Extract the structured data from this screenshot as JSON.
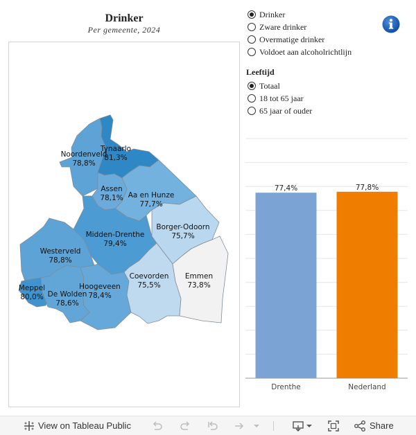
{
  "header": {
    "title": "Drinker",
    "subtitle": "Per gemeente, 2024"
  },
  "filters": {
    "indicator": [
      {
        "label": "Drinker",
        "selected": true
      },
      {
        "label": "Zware drinker",
        "selected": false
      },
      {
        "label": "Overmatige drinker",
        "selected": false
      },
      {
        "label": "Voldoet aan alcoholrichtlijn",
        "selected": false
      }
    ],
    "leeftijd_label": "Leeftijd",
    "leeftijd": [
      {
        "label": "Totaal",
        "selected": true
      },
      {
        "label": "18 tot 65 jaar",
        "selected": false
      },
      {
        "label": "65 jaar of ouder",
        "selected": false
      }
    ]
  },
  "map": {
    "municipalities": [
      {
        "name": "Tynaarlo",
        "value": "81,3%",
        "color": "#2e88c6"
      },
      {
        "name": "Noordenveld",
        "value": "78,8%",
        "color": "#5da3d6"
      },
      {
        "name": "Assen",
        "value": "78,1%",
        "color": "#6aabdb"
      },
      {
        "name": "Aa en Hunze",
        "value": "77,7%",
        "color": "#73b1de"
      },
      {
        "name": "Midden-Drenthe",
        "value": "79,4%",
        "color": "#4d9bd3"
      },
      {
        "name": "Borger-Odoorn",
        "value": "75,7%",
        "color": "#b9d7ee"
      },
      {
        "name": "Westerveld",
        "value": "78,8%",
        "color": "#5da3d6"
      },
      {
        "name": "Meppel",
        "value": "80,0%",
        "color": "#3f93cf"
      },
      {
        "name": "De Wolden",
        "value": "78,6%",
        "color": "#62a6d8"
      },
      {
        "name": "Hoogeveen",
        "value": "78,4%",
        "color": "#66a8d9"
      },
      {
        "name": "Coevorden",
        "value": "75,5%",
        "color": "#bfdaef"
      },
      {
        "name": "Emmen",
        "value": "73,8%",
        "color": "#f2f2f2"
      }
    ]
  },
  "chart_data": {
    "type": "bar",
    "categories": [
      "Drenthe",
      "Nederland"
    ],
    "values": [
      77.4,
      77.8
    ],
    "value_labels": [
      "77,4%",
      "77,8%"
    ],
    "colors": [
      "#7ba3d4",
      "#ef7d00"
    ],
    "ylim": [
      0,
      100
    ],
    "grid": true
  },
  "footer": {
    "view_label": "View on Tableau Public",
    "share_label": "Share"
  }
}
